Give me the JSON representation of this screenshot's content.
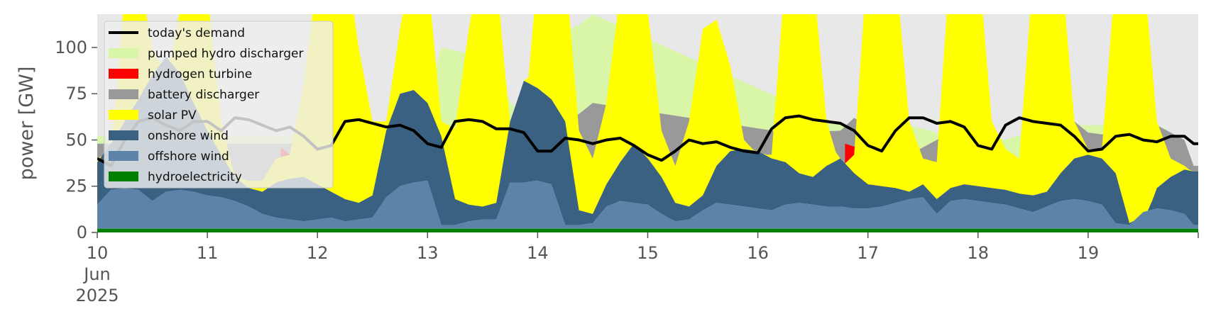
{
  "chart_data": {
    "type": "area",
    "ylabel": "power [GW]",
    "ylim": [
      0,
      118
    ],
    "yticks": [
      0,
      25,
      50,
      75,
      100
    ],
    "x_start": "2025-06-10",
    "days": 10,
    "xticks": [
      {
        "day": 0,
        "label": "10",
        "sub": [
          "Jun",
          "2025"
        ]
      },
      {
        "day": 1,
        "label": "11"
      },
      {
        "day": 2,
        "label": "12"
      },
      {
        "day": 3,
        "label": "13"
      },
      {
        "day": 4,
        "label": "14"
      },
      {
        "day": 5,
        "label": "15"
      },
      {
        "day": 6,
        "label": "16"
      },
      {
        "day": 7,
        "label": "17"
      },
      {
        "day": 8,
        "label": "18"
      },
      {
        "day": 9,
        "label": "19"
      }
    ],
    "legend_position": "upper-left",
    "colors": {
      "demand": "#000000",
      "hydro": "#008000",
      "offshore": "#5b84a8",
      "onshore": "#3a6182",
      "solar": "#ffff00",
      "battery": "#999999",
      "hydrogen": "#ff0000",
      "pumped": "#d9f5a8",
      "background": "#e8e8e8"
    },
    "legend": [
      {
        "label": "today's demand",
        "kind": "line",
        "color": "#000000"
      },
      {
        "label": "pumped hydro discharger",
        "kind": "patch",
        "color": "#d9f5a8"
      },
      {
        "label": "hydrogen turbine",
        "kind": "patch",
        "color": "#ff0000"
      },
      {
        "label": "battery discharger",
        "kind": "patch",
        "color": "#999999"
      },
      {
        "label": "solar PV",
        "kind": "patch",
        "color": "#ffff00"
      },
      {
        "label": "onshore wind",
        "kind": "patch",
        "color": "#3a6182"
      },
      {
        "label": "offshore wind",
        "kind": "patch",
        "color": "#5b84a8"
      },
      {
        "label": "hydroelectricity",
        "kind": "patch",
        "color": "#008000"
      }
    ],
    "series_stack_order": [
      "hydroelectricity",
      "offshore wind",
      "onshore wind",
      "solar PV",
      "battery discharger",
      "hydrogen turbine",
      "pumped hydro discharger"
    ],
    "demand": {
      "hours": [
        0,
        3,
        6,
        9,
        12,
        15,
        18,
        21,
        24,
        27,
        30,
        33,
        36,
        39,
        42,
        45,
        48,
        51,
        54,
        57,
        60,
        63,
        66,
        69,
        72,
        75,
        78,
        81,
        84,
        87,
        90,
        93,
        96,
        99,
        102,
        105,
        108,
        111,
        114,
        117,
        120,
        123,
        126,
        129,
        132,
        135,
        138,
        141,
        144,
        147,
        150,
        153,
        156,
        159,
        162,
        165,
        168,
        171,
        174,
        177,
        180,
        183,
        186,
        189,
        192,
        195,
        198,
        201,
        204,
        207,
        210,
        213,
        216,
        219,
        222,
        225,
        228,
        231,
        234,
        237,
        239
      ],
      "values": [
        40,
        36,
        50,
        60,
        62,
        58,
        55,
        60,
        60,
        55,
        62,
        61,
        58,
        55,
        57,
        52,
        45,
        47,
        60,
        61,
        59,
        57,
        58,
        55,
        48,
        46,
        60,
        61,
        60,
        56,
        56,
        54,
        44,
        44,
        51,
        50,
        48,
        50,
        51,
        47,
        42,
        39,
        44,
        50,
        48,
        49,
        46,
        44,
        43,
        56,
        62,
        63,
        61,
        60,
        59,
        55,
        47,
        44,
        55,
        62,
        62,
        59,
        60,
        57,
        47,
        45,
        58,
        62,
        60,
        59,
        58,
        52,
        44,
        45,
        52,
        53,
        50,
        49,
        52,
        52,
        48
      ]
    },
    "hydro": {
      "base": 2
    },
    "offshore": {
      "hours": [
        0,
        3,
        6,
        9,
        12,
        15,
        18,
        21,
        24,
        27,
        30,
        33,
        36,
        39,
        42,
        45,
        48,
        51,
        54,
        57,
        60,
        63,
        66,
        69,
        72,
        75,
        78,
        81,
        84,
        87,
        90,
        93,
        96,
        99,
        102,
        105,
        108,
        111,
        114,
        117,
        120,
        123,
        126,
        129,
        132,
        135,
        138,
        141,
        144,
        147,
        150,
        153,
        156,
        159,
        162,
        165,
        168,
        171,
        174,
        177,
        180,
        183,
        186,
        189,
        192,
        195,
        198,
        201,
        204,
        207,
        210,
        213,
        216,
        219,
        222,
        225,
        228,
        231,
        234,
        237,
        239
      ],
      "values": [
        13,
        21,
        22,
        21,
        15,
        20,
        21,
        20,
        18,
        17,
        15,
        12,
        8,
        6,
        5,
        4,
        5,
        6,
        4,
        5,
        6,
        17,
        23,
        25,
        26,
        2,
        2,
        4,
        5,
        5,
        25,
        25,
        26,
        24,
        2,
        2,
        3,
        12,
        15,
        14,
        13,
        8,
        4,
        5,
        10,
        14,
        13,
        12,
        11,
        10,
        13,
        14,
        13,
        12,
        12,
        11,
        11,
        12,
        14,
        16,
        17,
        8,
        15,
        16,
        15,
        14,
        13,
        11,
        9,
        12,
        15,
        16,
        15,
        13,
        3,
        2,
        9,
        11,
        10,
        8,
        2
      ]
    },
    "onshore": {
      "hours": [
        0,
        3,
        6,
        9,
        12,
        15,
        18,
        21,
        24,
        27,
        30,
        33,
        36,
        39,
        42,
        45,
        48,
        51,
        54,
        57,
        60,
        63,
        66,
        69,
        72,
        75,
        78,
        81,
        84,
        87,
        90,
        93,
        96,
        99,
        102,
        105,
        108,
        111,
        114,
        117,
        120,
        123,
        126,
        129,
        132,
        135,
        138,
        141,
        144,
        147,
        150,
        153,
        156,
        159,
        162,
        165,
        168,
        171,
        174,
        177,
        180,
        183,
        186,
        189,
        192,
        195,
        198,
        201,
        204,
        207,
        210,
        213,
        216,
        219,
        222,
        225,
        228,
        231,
        234,
        237,
        239
      ],
      "values": [
        38,
        48,
        60,
        72,
        85,
        95,
        86,
        70,
        55,
        42,
        30,
        24,
        22,
        27,
        29,
        30,
        26,
        22,
        18,
        16,
        20,
        55,
        75,
        77,
        70,
        52,
        18,
        15,
        14,
        16,
        60,
        82,
        78,
        72,
        60,
        12,
        10,
        26,
        38,
        48,
        40,
        30,
        16,
        14,
        20,
        36,
        44,
        45,
        44,
        40,
        38,
        32,
        30,
        36,
        40,
        32,
        26,
        25,
        24,
        22,
        26,
        18,
        24,
        26,
        25,
        24,
        23,
        21,
        20,
        22,
        32,
        40,
        42,
        40,
        32,
        5,
        4,
        24,
        30,
        34,
        33
      ]
    },
    "solar_top": {
      "hours": [
        0,
        3,
        6,
        9,
        12,
        15,
        18,
        21,
        24,
        27,
        30,
        33,
        36,
        39,
        42,
        45,
        48,
        51,
        54,
        57,
        60,
        63,
        66,
        69,
        72,
        75,
        78,
        81,
        84,
        87,
        90,
        93,
        96,
        99,
        102,
        105,
        108,
        111,
        114,
        117,
        120,
        123,
        126,
        129,
        132,
        135,
        138,
        141,
        144,
        147,
        150,
        153,
        156,
        159,
        162,
        165,
        168,
        171,
        174,
        177,
        180,
        183,
        186,
        189,
        192,
        195,
        198,
        201,
        204,
        207,
        210,
        213,
        216,
        219,
        222,
        225,
        228,
        231,
        234,
        237,
        239
      ],
      "values": [
        40,
        40,
        130,
        140,
        100,
        80,
        120,
        150,
        130,
        60,
        30,
        28,
        28,
        40,
        42,
        80,
        140,
        160,
        150,
        100,
        60,
        60,
        110,
        150,
        140,
        60,
        56,
        110,
        150,
        140,
        56,
        56,
        140,
        160,
        145,
        55,
        40,
        70,
        130,
        145,
        120,
        55,
        36,
        60,
        110,
        115,
        90,
        50,
        42,
        42,
        140,
        150,
        140,
        60,
        35,
        42,
        150,
        160,
        145,
        60,
        40,
        38,
        150,
        160,
        150,
        60,
        45,
        40,
        140,
        160,
        150,
        60,
        45,
        45,
        140,
        160,
        145,
        60,
        40,
        36,
        32
      ]
    },
    "battery_top": {
      "hours": [
        0,
        8,
        9,
        96,
        99,
        102,
        105,
        108,
        150,
        162,
        165,
        168,
        174,
        177,
        186,
        189,
        192,
        198,
        201,
        204,
        210,
        213,
        216,
        219,
        222,
        225,
        228,
        231,
        234,
        237,
        239
      ],
      "values": [
        48,
        48,
        48,
        48,
        55,
        60,
        64,
        70,
        54,
        55,
        62,
        57,
        45,
        42,
        54,
        56,
        52,
        45,
        35,
        52,
        56,
        60,
        54,
        53,
        55,
        56,
        57,
        58,
        54,
        50,
        36
      ]
    },
    "hydrogen_top": {
      "hours": [
        40,
        43,
        46,
        49,
        163,
        168,
        171,
        174,
        177,
        186,
        189,
        192,
        195,
        198
      ],
      "values": [
        46,
        40,
        34,
        30,
        48,
        44,
        36,
        28,
        30,
        52,
        44,
        38,
        28,
        24
      ]
    },
    "pumped_top": {
      "hours": [
        0,
        2,
        70,
        75,
        82,
        96,
        101,
        105,
        108,
        162,
        168,
        177,
        186,
        189,
        192,
        198,
        210,
        215,
        220,
        228,
        230,
        233
      ],
      "values": [
        52,
        52,
        52,
        100,
        96,
        52,
        108,
        112,
        118,
        58,
        50,
        58,
        52,
        48,
        54,
        50,
        60,
        58,
        58,
        58,
        56,
        56
      ]
    }
  }
}
